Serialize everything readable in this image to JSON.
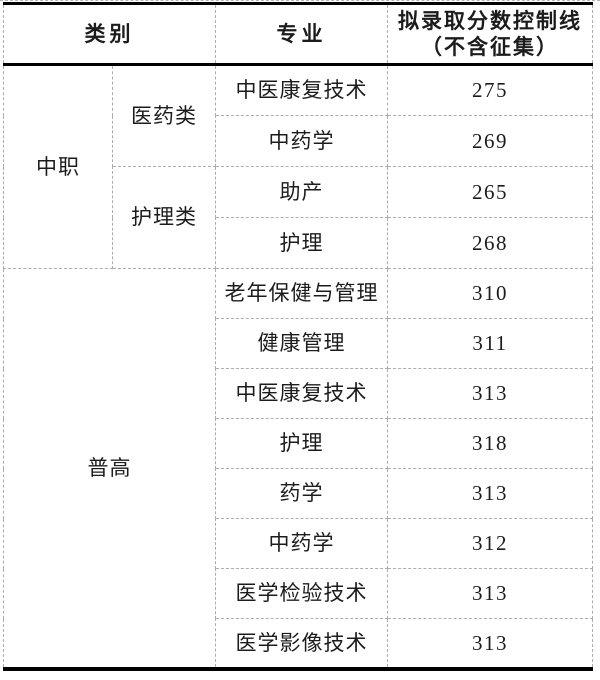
{
  "table": {
    "headers": {
      "category": "类别",
      "major": "专业",
      "score_line1": "拟录取分数控制线",
      "score_line2": "（不含征集）"
    },
    "groups": [
      {
        "category": "中职",
        "subgroups": [
          {
            "type": "医药类",
            "rows": [
              {
                "major": "中医康复技术",
                "score": "275"
              },
              {
                "major": "中药学",
                "score": "269"
              }
            ]
          },
          {
            "type": "护理类",
            "rows": [
              {
                "major": "助产",
                "score": "265"
              },
              {
                "major": "护理",
                "score": "268"
              }
            ]
          }
        ]
      },
      {
        "category": "普高",
        "rows": [
          {
            "major": "老年保健与管理",
            "score": "310"
          },
          {
            "major": "健康管理",
            "score": "311"
          },
          {
            "major": "中医康复技术",
            "score": "313"
          },
          {
            "major": "护理",
            "score": "318"
          },
          {
            "major": "药学",
            "score": "313"
          },
          {
            "major": "中药学",
            "score": "312"
          },
          {
            "major": "医学检验技术",
            "score": "313"
          },
          {
            "major": "医学影像技术",
            "score": "313"
          }
        ]
      }
    ],
    "colors": {
      "text": "#1c1c1c",
      "thick_border": "#000000",
      "thin_border": "#adadad"
    }
  }
}
